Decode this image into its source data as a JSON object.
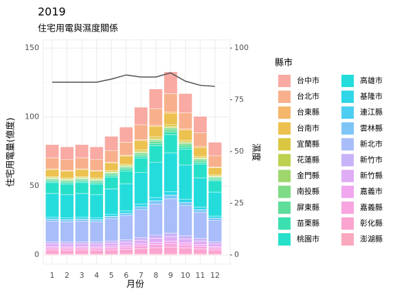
{
  "chart_data": {
    "type": "stacked-bar",
    "title": "2019",
    "subtitle": "住宅用電與濕度關係",
    "x_label": "月份",
    "y_label": "住宅用電量(億度)",
    "y2_label": "濕度",
    "legend_title": "縣市",
    "categories": [
      "1",
      "2",
      "3",
      "4",
      "5",
      "6",
      "7",
      "8",
      "9",
      "10",
      "11",
      "12"
    ],
    "ylim": [
      -6.6,
      156
    ],
    "yticks": [
      0,
      50,
      100,
      150
    ],
    "y2lim": [
      -4.4,
      104
    ],
    "y2ticks": [
      0,
      25,
      50,
      75,
      100
    ],
    "grid": true,
    "series": [
      {
        "name": "台中市",
        "color": "#f8aaa3",
        "values": [
          9.5,
          9.3,
          9.5,
          9.3,
          10.2,
          11.0,
          12.7,
          14.3,
          15.8,
          13.9,
          11.9,
          9.7
        ]
      },
      {
        "name": "台北市",
        "color": "#f8b08c",
        "values": [
          8,
          7.8,
          8,
          7.8,
          8.6,
          9.3,
          10.7,
          12,
          13.3,
          11.7,
          10,
          8.2
        ]
      },
      {
        "name": "台東縣",
        "color": "#f5b76c",
        "values": [
          0.6,
          0.6,
          0.6,
          0.6,
          0.6,
          0.7,
          0.8,
          0.9,
          1.0,
          0.9,
          0.8,
          0.6
        ]
      },
      {
        "name": "台南市",
        "color": "#ecc14f",
        "values": [
          5,
          4.9,
          5,
          4.9,
          5.4,
          5.8,
          6.7,
          7.5,
          8.3,
          7.3,
          6.3,
          5.1
        ]
      },
      {
        "name": "宜蘭縣",
        "color": "#d9c741",
        "values": [
          0.8,
          0.8,
          0.8,
          0.8,
          0.9,
          0.9,
          1.1,
          1.2,
          1.3,
          1.2,
          1.0,
          0.8
        ]
      },
      {
        "name": "花蓮縣",
        "color": "#bdd04f",
        "values": [
          0.5,
          0.5,
          0.5,
          0.5,
          0.5,
          0.6,
          0.7,
          0.8,
          0.8,
          0.7,
          0.6,
          0.5
        ]
      },
      {
        "name": "金門縣",
        "color": "#9ed76b",
        "values": [
          0.2,
          0.2,
          0.2,
          0.2,
          0.2,
          0.2,
          0.3,
          0.3,
          0.3,
          0.3,
          0.3,
          0.2
        ]
      },
      {
        "name": "南投縣",
        "color": "#7fdb85",
        "values": [
          0.8,
          0.8,
          0.8,
          0.8,
          0.9,
          0.9,
          1.1,
          1.2,
          1.3,
          1.2,
          1.0,
          0.8
        ]
      },
      {
        "name": "屏東縣",
        "color": "#5edd9b",
        "values": [
          1,
          1,
          1,
          1,
          1.1,
          1.2,
          1.3,
          1.5,
          1.7,
          1.5,
          1.3,
          1
        ]
      },
      {
        "name": "苗栗縣",
        "color": "#3be0b1",
        "values": [
          1,
          1,
          1,
          1,
          1.1,
          1.2,
          1.3,
          1.5,
          1.7,
          1.5,
          1.3,
          1
        ]
      },
      {
        "name": "桃園市",
        "color": "#27e0c9",
        "values": [
          8,
          7.8,
          8,
          7.8,
          8.6,
          9.3,
          10.7,
          12,
          13.3,
          11.7,
          10,
          8.2
        ]
      },
      {
        "name": "高雄市",
        "color": "#25dcdc",
        "values": [
          17,
          16.6,
          17,
          16.6,
          18.3,
          19.7,
          22.8,
          25.5,
          28.2,
          24.8,
          21.3,
          17.4
        ]
      },
      {
        "name": "基隆市",
        "color": "#2ed6e8",
        "values": [
          1.5,
          1.5,
          1.5,
          1.5,
          1.6,
          1.7,
          2.0,
          2.3,
          2.5,
          2.2,
          1.9,
          1.5
        ]
      },
      {
        "name": "連江縣",
        "color": "#4ccdf2",
        "values": [
          0.1,
          0.1,
          0.1,
          0.1,
          0.1,
          0.1,
          0.1,
          0.1,
          0.1,
          0.1,
          0.1,
          0.1
        ]
      },
      {
        "name": "雲林縣",
        "color": "#7dc5f7",
        "values": [
          1.5,
          1.5,
          1.5,
          1.5,
          1.6,
          1.7,
          2.0,
          2.3,
          2.5,
          2.2,
          1.9,
          1.5
        ]
      },
      {
        "name": "新北市",
        "color": "#a8bdf9",
        "values": [
          15,
          14.6,
          15,
          14.6,
          16.1,
          17.4,
          20.1,
          22.5,
          24.9,
          21.9,
          18.8,
          15.4
        ]
      },
      {
        "name": "新竹市",
        "color": "#c9b3f8",
        "values": [
          1.5,
          1.5,
          1.5,
          1.5,
          1.6,
          1.7,
          2.0,
          2.3,
          2.5,
          2.2,
          1.9,
          1.5
        ]
      },
      {
        "name": "新竹縣",
        "color": "#e0acf5",
        "values": [
          2,
          2,
          2,
          2,
          2.2,
          2.3,
          2.7,
          3,
          3.3,
          2.9,
          2.5,
          2.1
        ]
      },
      {
        "name": "嘉義市",
        "color": "#f0a7ee",
        "values": [
          1,
          1,
          1,
          1,
          1.1,
          1.2,
          1.3,
          1.5,
          1.7,
          1.5,
          1.3,
          1
        ]
      },
      {
        "name": "嘉義縣",
        "color": "#f8a4e0",
        "values": [
          1.5,
          1.5,
          1.5,
          1.5,
          1.6,
          1.7,
          2.0,
          2.3,
          2.5,
          2.2,
          1.9,
          1.5
        ]
      },
      {
        "name": "彰化縣",
        "color": "#faa4cf",
        "values": [
          3,
          2.9,
          3,
          2.9,
          3.2,
          3.5,
          4,
          4.5,
          5,
          4.4,
          3.8,
          3.1
        ]
      },
      {
        "name": "澎湖縣",
        "color": "#f9a8bd",
        "values": [
          0.5,
          0.5,
          0.5,
          0.5,
          0.5,
          0.6,
          0.7,
          0.8,
          0.8,
          0.7,
          0.6,
          0.5
        ]
      }
    ],
    "humidity": {
      "axis": "y2",
      "color": "#5a5a5a",
      "values": [
        83.5,
        83.5,
        83.5,
        83.5,
        85,
        87,
        86,
        86,
        88,
        84,
        82,
        81.5
      ]
    }
  }
}
